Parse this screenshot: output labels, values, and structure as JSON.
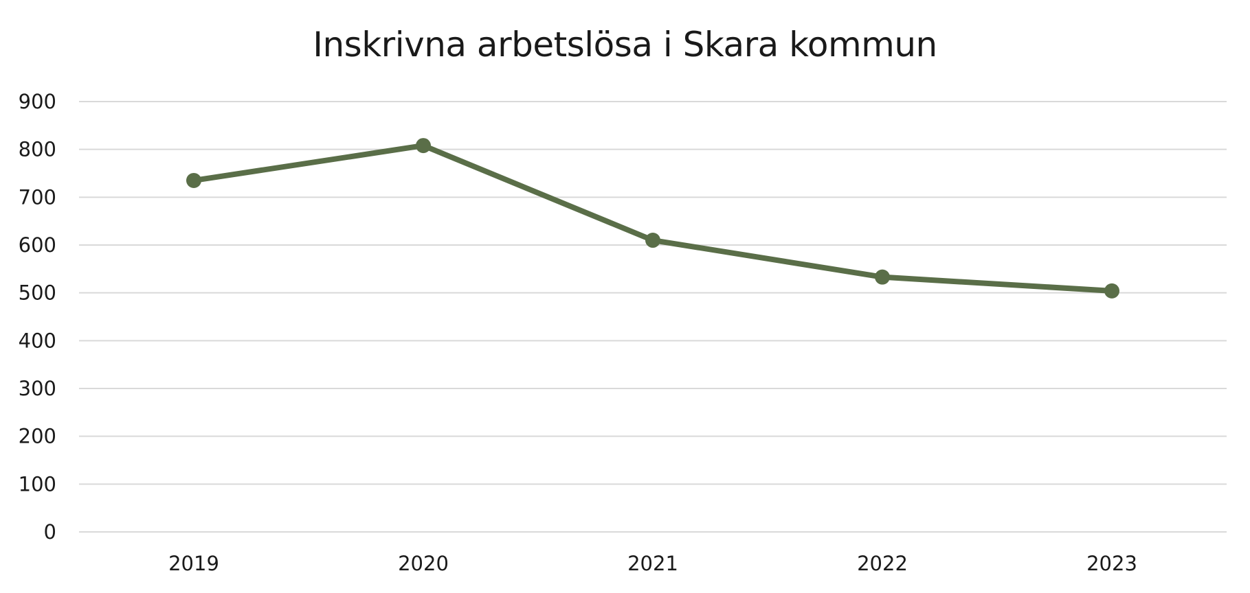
{
  "chart_data": {
    "type": "line",
    "title": "Inskrivna arbetslösa i Skara kommun",
    "xlabel": "",
    "ylabel": "",
    "categories": [
      "2019",
      "2020",
      "2021",
      "2022",
      "2023"
    ],
    "series": [
      {
        "values": [
          735,
          808,
          610,
          533,
          504
        ],
        "color": "#5a6e48"
      }
    ],
    "ylim": [
      0,
      900
    ],
    "yticks": [
      0,
      100,
      200,
      300,
      400,
      500,
      600,
      700,
      800,
      900
    ],
    "grid": true,
    "gridColor": "#d9d9d9",
    "legend": "none"
  }
}
